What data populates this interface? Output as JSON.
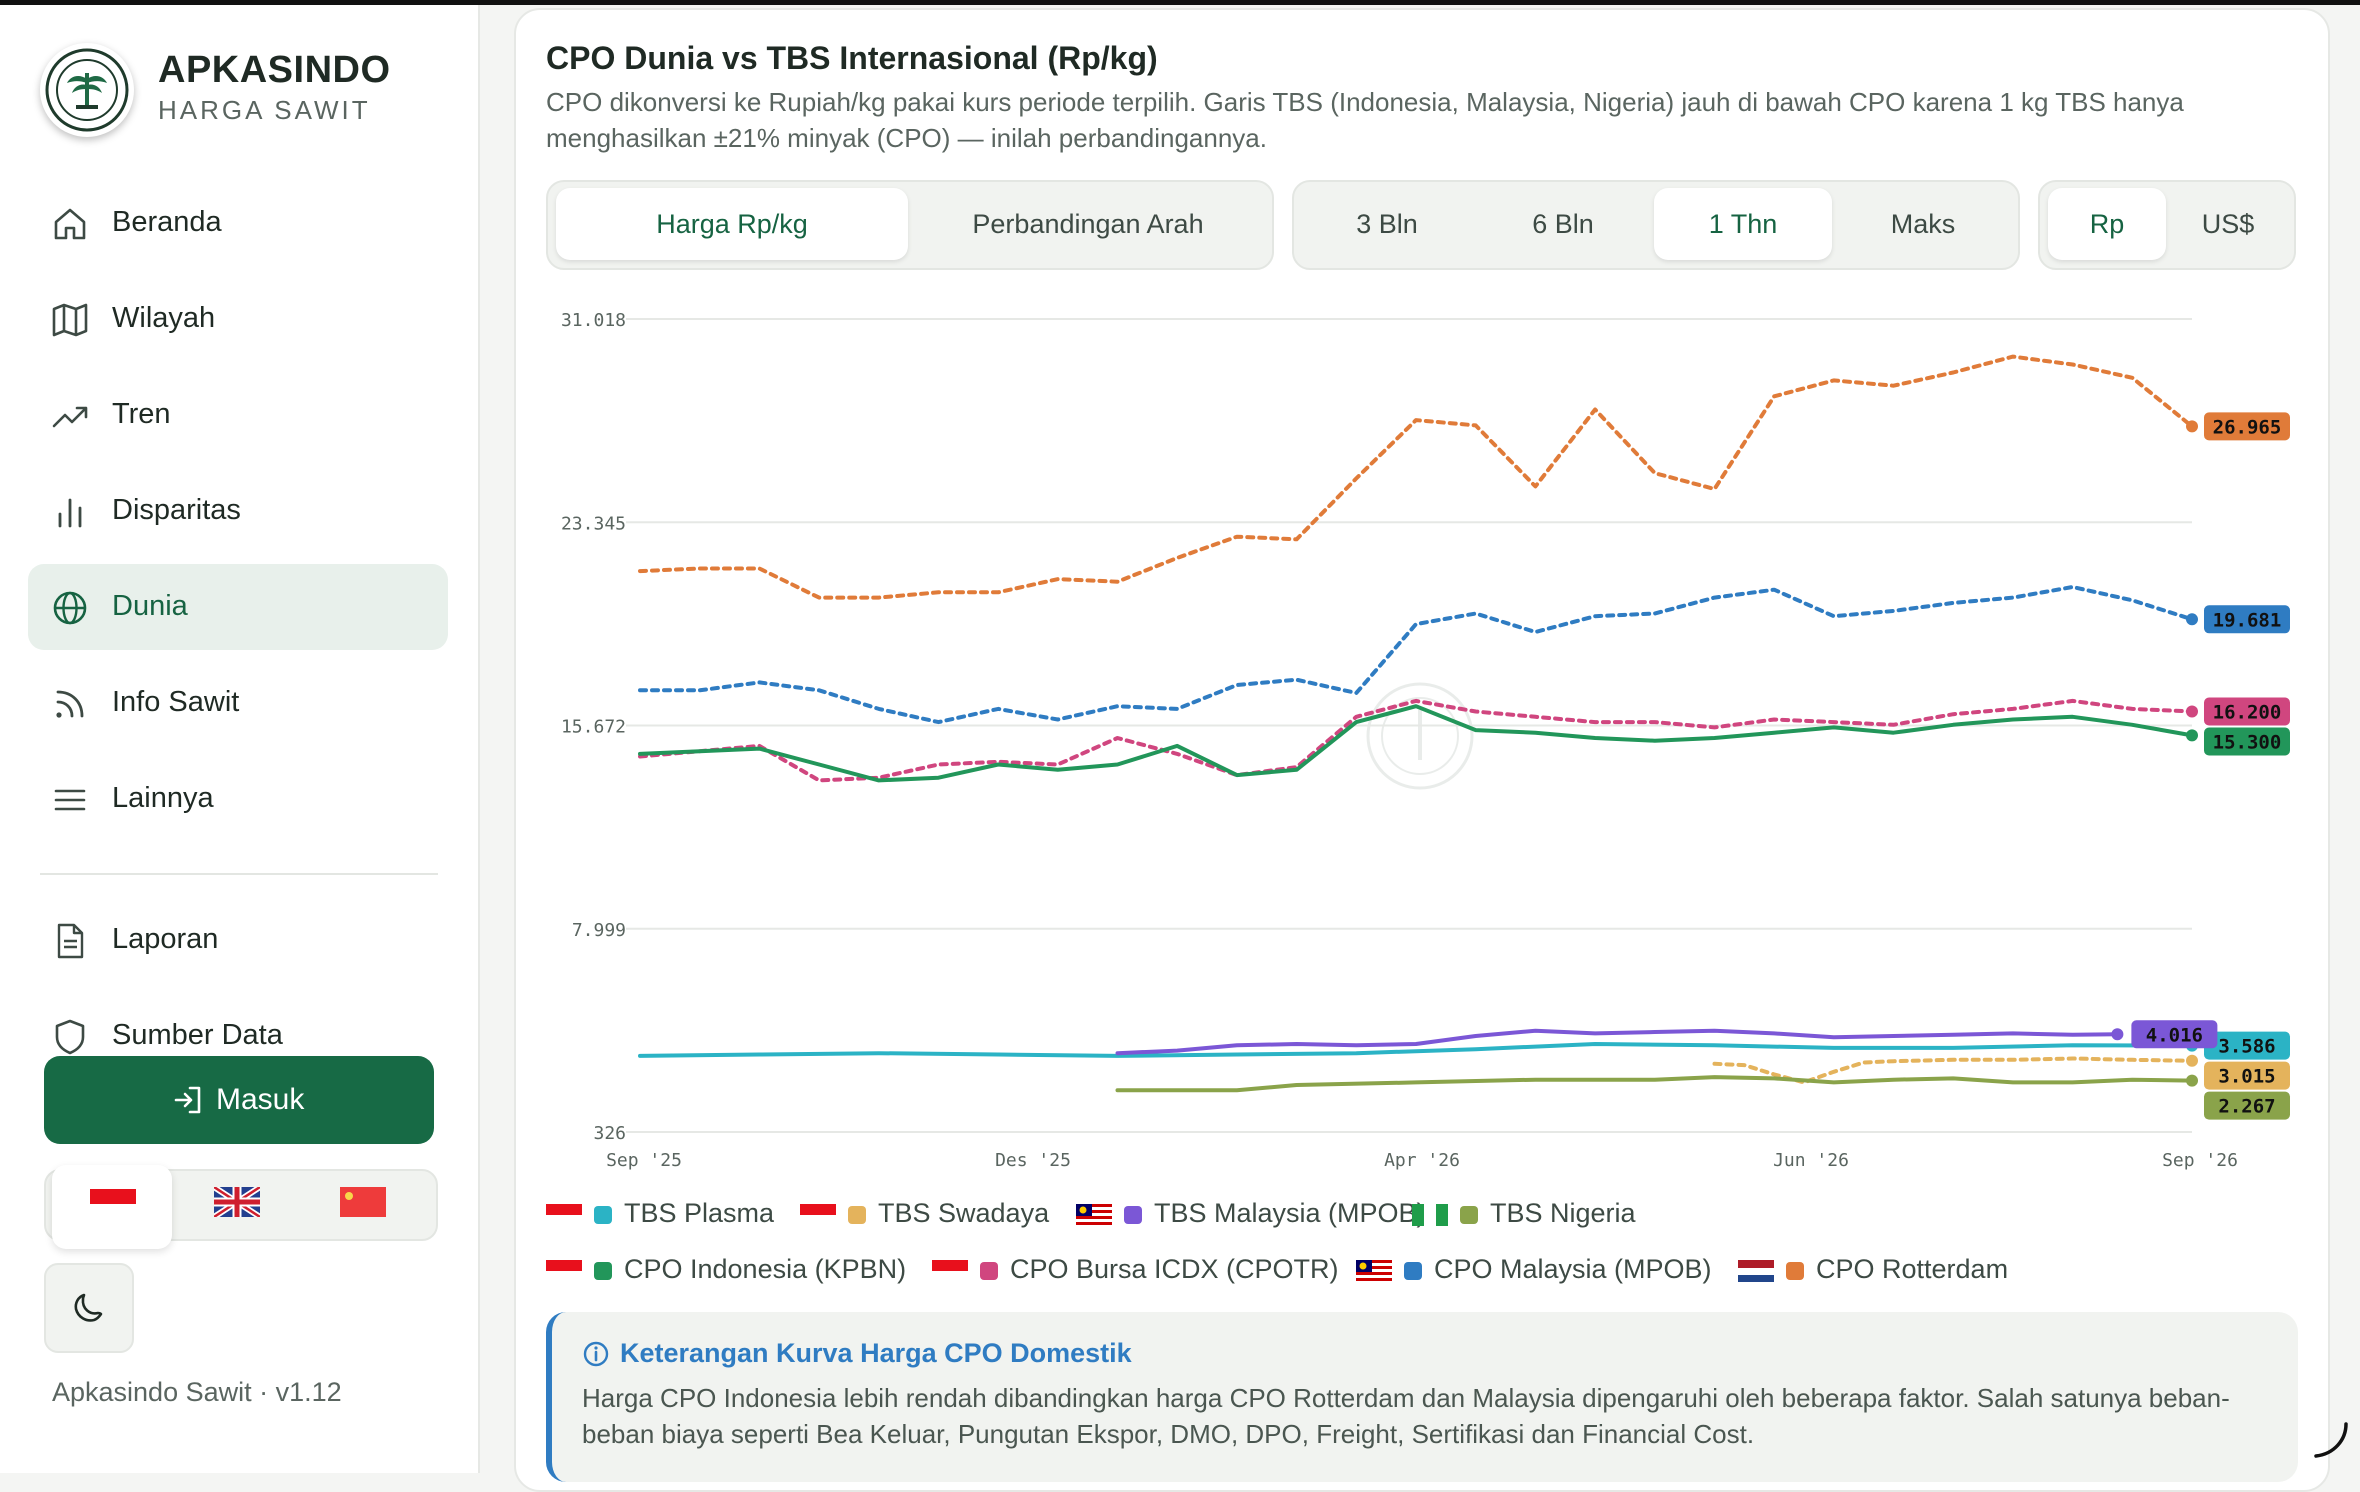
{
  "sidebar": {
    "brand_title": "APKASINDO",
    "brand_sub": "HARGA SAWIT",
    "items": [
      {
        "label": "Beranda",
        "icon": "home-icon"
      },
      {
        "label": "Wilayah",
        "icon": "map-icon"
      },
      {
        "label": "Tren",
        "icon": "trend-icon"
      },
      {
        "label": "Disparitas",
        "icon": "bar-chart-icon"
      },
      {
        "label": "Dunia",
        "icon": "globe-icon",
        "active": true
      },
      {
        "label": "Info Sawit",
        "icon": "rss-icon"
      },
      {
        "label": "Lainnya",
        "icon": "menu-icon"
      }
    ],
    "items2": [
      {
        "label": "Laporan",
        "icon": "document-icon"
      },
      {
        "label": "Sumber Data",
        "icon": "shield-icon"
      }
    ],
    "login_label": "Masuk",
    "languages": [
      "id",
      "en",
      "zh"
    ],
    "selected_language": "id",
    "version": "Apkasindo Sawit · v1.12"
  },
  "card": {
    "title": "CPO Dunia vs TBS Internasional (Rp/kg)",
    "description": "CPO dikonversi ke Rupiah/kg pakai kurs periode terpilih. Garis TBS (Indonesia, Malaysia, Nigeria) jauh di bawah CPO karena 1 kg TBS hanya menghasilkan ±21% minyak (CPO) — inilah perbandingannya.",
    "view_tabs": [
      "Harga Rp/kg",
      "Perbandingan Arah"
    ],
    "view_active": 0,
    "range_tabs": [
      "3 Bln",
      "6 Bln",
      "1 Thn",
      "Maks"
    ],
    "range_active": 2,
    "currency_tabs": [
      "Rp",
      "US$"
    ],
    "currency_active": 0
  },
  "chart_data": {
    "type": "line",
    "ylim": [
      326,
      31018
    ],
    "yticks": [
      "31.018",
      "23.345",
      "15.672",
      "7.999",
      "326"
    ],
    "xticks": [
      "Sep '25",
      "Des '25",
      "Apr '26",
      "Jun '26",
      "Sep '26"
    ],
    "xlim": [
      0,
      52
    ],
    "grid": true,
    "series": [
      {
        "name": "CPO Rotterdam",
        "color": "#e07b39",
        "dash": true,
        "end_label": "26.965",
        "x": [
          0,
          2,
          4,
          6,
          8,
          10,
          12,
          14,
          16,
          18,
          20,
          22,
          24,
          26,
          28,
          30,
          32,
          34,
          36,
          38,
          40,
          42,
          44,
          46,
          48,
          50,
          52
        ],
        "y": [
          21500,
          21600,
          21600,
          20500,
          20500,
          20700,
          20700,
          21200,
          21100,
          22000,
          22800,
          22700,
          25000,
          27200,
          27000,
          24700,
          27600,
          25200,
          24600,
          28100,
          28700,
          28500,
          29000,
          29600,
          29300,
          28800,
          26965
        ]
      },
      {
        "name": "CPO Malaysia (MPOB)",
        "color": "#2f7cc2",
        "dash": true,
        "end_label": "19.681",
        "x": [
          0,
          2,
          4,
          6,
          8,
          10,
          12,
          14,
          16,
          18,
          20,
          22,
          24,
          26,
          28,
          30,
          32,
          34,
          36,
          38,
          40,
          42,
          44,
          46,
          48,
          50,
          52
        ],
        "y": [
          17000,
          17000,
          17300,
          17000,
          16300,
          15800,
          16300,
          15900,
          16400,
          16300,
          17200,
          17400,
          16900,
          19500,
          19900,
          19200,
          19800,
          19900,
          20500,
          20800,
          19800,
          20000,
          20300,
          20500,
          20900,
          20400,
          19681
        ]
      },
      {
        "name": "CPO Bursa ICDX (CPOTR)",
        "color": "#d0467f",
        "dash": true,
        "end_label": "16.200",
        "x": [
          0,
          2,
          4,
          6,
          8,
          10,
          12,
          14,
          16,
          18,
          20,
          22,
          24,
          26,
          28,
          30,
          32,
          34,
          36,
          38,
          40,
          42,
          44,
          46,
          48,
          50,
          52
        ],
        "y": [
          14500,
          14700,
          14900,
          13600,
          13700,
          14200,
          14300,
          14200,
          15200,
          14600,
          13800,
          14100,
          16000,
          16600,
          16200,
          16000,
          15800,
          15800,
          15600,
          15900,
          15800,
          15700,
          16100,
          16300,
          16600,
          16300,
          16200
        ]
      },
      {
        "name": "CPO Indonesia (KPBN)",
        "color": "#22965a",
        "dash": false,
        "end_label": "15.300",
        "x": [
          0,
          2,
          4,
          6,
          8,
          10,
          12,
          14,
          16,
          18,
          20,
          22,
          24,
          26,
          28,
          30,
          32,
          34,
          36,
          38,
          40,
          42,
          44,
          46,
          48,
          50,
          52
        ],
        "y": [
          14600,
          14700,
          14800,
          14200,
          13600,
          13700,
          14200,
          14000,
          14200,
          14900,
          13800,
          14000,
          15800,
          16400,
          15500,
          15400,
          15200,
          15100,
          15200,
          15400,
          15600,
          15400,
          15700,
          15900,
          16000,
          15700,
          15300
        ]
      },
      {
        "name": "TBS Plasma",
        "color": "#2bb3c5",
        "dash": false,
        "end_label": "3.586",
        "x": [
          0,
          4,
          8,
          12,
          16,
          20,
          24,
          28,
          32,
          36,
          40,
          44,
          48,
          52
        ],
        "y": [
          3200,
          3250,
          3300,
          3250,
          3200,
          3250,
          3300,
          3450,
          3650,
          3600,
          3500,
          3500,
          3600,
          3586
        ]
      },
      {
        "name": "TBS Malaysia (MPOB)",
        "color": "#7b57d6",
        "dash": false,
        "end_label": "4.016",
        "x": [
          16,
          18,
          20,
          22,
          24,
          26,
          28,
          30,
          32,
          34,
          36,
          38,
          40,
          42,
          44,
          46,
          48,
          49.5
        ],
        "y": [
          3300,
          3400,
          3600,
          3650,
          3600,
          3650,
          3950,
          4150,
          4050,
          4100,
          4150,
          4050,
          3900,
          3950,
          4000,
          4050,
          4000,
          4016
        ]
      },
      {
        "name": "TBS Swadaya",
        "color": "#e4b35c",
        "dash": true,
        "end_label": "3.015",
        "x": [
          36,
          37,
          38,
          39,
          40,
          41,
          42,
          44,
          46,
          48,
          50,
          52
        ],
        "y": [
          2900,
          2850,
          2500,
          2200,
          2600,
          2950,
          3000,
          3050,
          3050,
          3100,
          3050,
          3015
        ]
      },
      {
        "name": "TBS Nigeria",
        "color": "#8aa34a",
        "dash": false,
        "end_label": "2.267",
        "x": [
          16,
          20,
          22,
          26,
          30,
          34,
          36,
          38,
          40,
          42,
          44,
          46,
          48,
          50,
          52
        ],
        "y": [
          1900,
          1900,
          2100,
          2200,
          2300,
          2300,
          2400,
          2350,
          2200,
          2300,
          2350,
          2200,
          2200,
          2300,
          2267
        ]
      }
    ]
  },
  "legend": {
    "row1": [
      {
        "text": "TBS Plasma",
        "color": "#2bb3c5",
        "flag": "id"
      },
      {
        "text": "TBS Swadaya",
        "color": "#e4b35c",
        "flag": "id"
      },
      {
        "text": "TBS Malaysia (MPOB)",
        "color": "#7b57d6",
        "flag": "my"
      },
      {
        "text": "TBS Nigeria",
        "color": "#8aa34a",
        "flag": "ng"
      }
    ],
    "row2": [
      {
        "text": "CPO Indonesia (KPBN)",
        "color": "#22965a",
        "flag": "id"
      },
      {
        "text": "CPO Bursa ICDX (CPOTR)",
        "color": "#d0467f",
        "flag": "id"
      },
      {
        "text": "CPO Malaysia (MPOB)",
        "color": "#2f7cc2",
        "flag": "my"
      },
      {
        "text": "CPO Rotterdam",
        "color": "#e07b39",
        "flag": "nl"
      }
    ]
  },
  "info": {
    "title": "Keterangan Kurva Harga CPO Domestik",
    "text": "Harga CPO Indonesia lebih rendah dibandingkan harga CPO Rotterdam dan Malaysia dipengaruhi oleh beberapa faktor. Salah satunya beban-beban biaya seperti Bea Keluar, Pungutan Ekspor, DMO, DPO, Freight, Sertifikasi dan Financial Cost."
  }
}
